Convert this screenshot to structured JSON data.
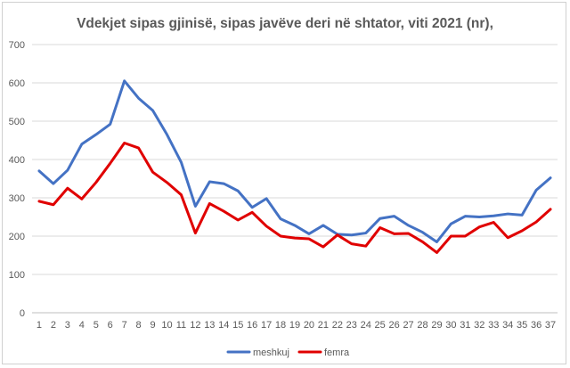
{
  "chart_data": {
    "type": "line",
    "title": "Vdekjet sipas gjinisë, sipas javëve deri në shtator, viti 2021 (nr),",
    "xlabel": "",
    "ylabel": "",
    "ylim": [
      0,
      700
    ],
    "yticks": [
      0,
      100,
      200,
      300,
      400,
      500,
      600,
      700
    ],
    "grid": true,
    "legend_position": "bottom",
    "categories": [
      "1",
      "2",
      "3",
      "4",
      "5",
      "6",
      "7",
      "8",
      "9",
      "10",
      "11",
      "12",
      "13",
      "14",
      "15",
      "16",
      "17",
      "18",
      "19",
      "20",
      "21",
      "22",
      "23",
      "24",
      "25",
      "26",
      "27",
      "28",
      "29",
      "30",
      "31",
      "32",
      "33",
      "34",
      "35",
      "36",
      "37"
    ],
    "series": [
      {
        "name": "meshkuj",
        "color": "#4472c4",
        "values": [
          370,
          337,
          372,
          440,
          465,
          492,
          605,
          560,
          528,
          465,
          393,
          278,
          342,
          337,
          318,
          275,
          298,
          245,
          228,
          206,
          228,
          205,
          203,
          208,
          246,
          252,
          228,
          210,
          185,
          232,
          252,
          250,
          253,
          258,
          255,
          320,
          352
        ]
      },
      {
        "name": "femra",
        "color": "#e00000",
        "values": [
          291,
          282,
          325,
          297,
          340,
          390,
          443,
          430,
          367,
          340,
          308,
          208,
          285,
          265,
          242,
          262,
          226,
          200,
          195,
          193,
          172,
          203,
          180,
          174,
          222,
          206,
          207,
          185,
          157,
          200,
          200,
          224,
          236,
          196,
          214,
          237,
          270
        ]
      }
    ]
  }
}
